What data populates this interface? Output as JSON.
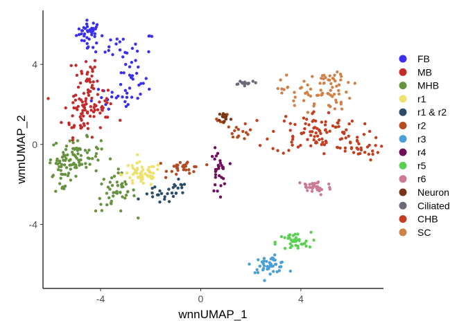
{
  "chart_data": {
    "type": "scatter",
    "title": "",
    "xlabel": "wnnUMAP_1",
    "ylabel": "wnnUMAP_2",
    "xlim": [
      -6.3,
      7.3
    ],
    "ylim": [
      -7.2,
      6.7
    ],
    "x_ticks": [
      -4,
      0,
      4
    ],
    "y_ticks": [
      -4,
      0,
      4
    ],
    "x_tick_labels": [
      "-4",
      "0",
      "4"
    ],
    "y_tick_labels": [
      "-4",
      "0",
      "4"
    ],
    "grid": false,
    "legend_position": "right",
    "series": [
      {
        "name": "FB",
        "color": "#3a2ff0",
        "clusters": [
          {
            "cx": -4.45,
            "cy": 5.6,
            "sx": 0.25,
            "sy": 0.3,
            "n": 35
          },
          {
            "cx": -3.1,
            "cy": 4.9,
            "sx": 0.7,
            "sy": 0.35,
            "n": 25
          },
          {
            "cx": -2.8,
            "cy": 3.1,
            "sx": 0.35,
            "sy": 0.6,
            "n": 25
          },
          {
            "cx": -3.5,
            "cy": 2.1,
            "sx": 0.5,
            "sy": 0.3,
            "n": 15
          }
        ]
      },
      {
        "name": "MB",
        "color": "#c42a2a",
        "clusters": [
          {
            "cx": -4.6,
            "cy": 3.3,
            "sx": 0.25,
            "sy": 0.6,
            "n": 35
          },
          {
            "cx": -4.7,
            "cy": 1.6,
            "sx": 0.4,
            "sy": 0.6,
            "n": 55
          },
          {
            "cx": -3.9,
            "cy": 1.9,
            "sx": 0.25,
            "sy": 0.35,
            "n": 18
          }
        ]
      },
      {
        "name": "MHB",
        "color": "#67923f",
        "clusters": [
          {
            "cx": -5.0,
            "cy": -0.6,
            "sx": 0.5,
            "sy": 0.45,
            "n": 80
          },
          {
            "cx": -5.6,
            "cy": -1.5,
            "sx": 0.2,
            "sy": 0.4,
            "n": 20
          },
          {
            "cx": -3.4,
            "cy": -2.4,
            "sx": 0.4,
            "sy": 0.5,
            "n": 45
          }
        ]
      },
      {
        "name": "r1",
        "color": "#ede170",
        "clusters": [
          {
            "cx": -2.35,
            "cy": -1.5,
            "sx": 0.4,
            "sy": 0.3,
            "n": 55
          }
        ]
      },
      {
        "name": "r1 & r2",
        "color": "#2d4c6a",
        "clusters": [
          {
            "cx": -1.7,
            "cy": -2.55,
            "sx": 0.3,
            "sy": 0.2,
            "n": 16
          },
          {
            "cx": -0.95,
            "cy": -2.35,
            "sx": 0.2,
            "sy": 0.25,
            "n": 14
          }
        ]
      },
      {
        "name": "r2",
        "color": "#b34c22",
        "clusters": [
          {
            "cx": -0.6,
            "cy": -1.15,
            "sx": 0.35,
            "sy": 0.2,
            "n": 30
          },
          {
            "cx": 1.5,
            "cy": 0.65,
            "sx": 0.25,
            "sy": 0.2,
            "n": 14
          },
          {
            "cx": 0.9,
            "cy": 1.3,
            "sx": 0.12,
            "sy": 0.15,
            "n": 8
          }
        ]
      },
      {
        "name": "r3",
        "color": "#4aa0d6",
        "clusters": [
          {
            "cx": 2.75,
            "cy": -6.0,
            "sx": 0.35,
            "sy": 0.2,
            "n": 45
          }
        ]
      },
      {
        "name": "r4",
        "color": "#6e0f5b",
        "clusters": [
          {
            "cx": 0.7,
            "cy": -1.4,
            "sx": 0.15,
            "sy": 0.55,
            "n": 30
          }
        ]
      },
      {
        "name": "r5",
        "color": "#5bd052",
        "clusters": [
          {
            "cx": 3.7,
            "cy": -4.9,
            "sx": 0.35,
            "sy": 0.25,
            "n": 35
          }
        ]
      },
      {
        "name": "r6",
        "color": "#cc7a94",
        "clusters": [
          {
            "cx": 4.55,
            "cy": -2.15,
            "sx": 0.35,
            "sy": 0.2,
            "n": 35
          }
        ]
      },
      {
        "name": "Neuron",
        "color": "#7a3418",
        "clusters": [
          {
            "cx": 0.95,
            "cy": 1.35,
            "sx": 0.12,
            "sy": 0.15,
            "n": 12
          }
        ]
      },
      {
        "name": "Ciliated",
        "color": "#6e6879",
        "clusters": [
          {
            "cx": 1.8,
            "cy": 3.1,
            "sx": 0.25,
            "sy": 0.06,
            "n": 14
          }
        ]
      },
      {
        "name": "CHB",
        "color": "#c23e1e",
        "clusters": [
          {
            "cx": 4.6,
            "cy": 0.6,
            "sx": 0.9,
            "sy": 0.55,
            "n": 90
          },
          {
            "cx": 6.2,
            "cy": -0.2,
            "sx": 0.5,
            "sy": 0.3,
            "n": 30
          }
        ]
      },
      {
        "name": "SC",
        "color": "#d08148",
        "clusters": [
          {
            "cx": 4.6,
            "cy": 2.6,
            "sx": 0.7,
            "sy": 0.45,
            "n": 65
          },
          {
            "cx": 5.2,
            "cy": 3.3,
            "sx": 0.3,
            "sy": 0.15,
            "n": 12
          }
        ]
      }
    ]
  }
}
